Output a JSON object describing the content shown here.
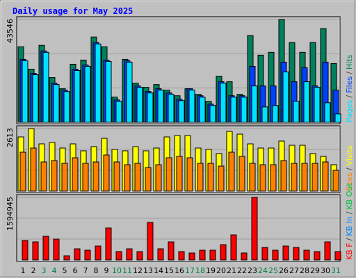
{
  "title": "Daily usage for May 2025",
  "chart_data": [
    {
      "type": "bar",
      "ylim": [
        0,
        43546
      ],
      "yticks": [
        43546
      ],
      "legend_separator": "/",
      "series": [
        {
          "name": "Pages",
          "color": "#00e0ff",
          "values": [
            26066,
            20142,
            29620,
            15995,
            13033,
            21919,
            23696,
            33174,
            25769,
            8886,
            25473,
            14810,
            12440,
            13625,
            11848,
            9182,
            13625,
            10663,
            7109,
            16587,
            10663,
            10663,
            15402,
            6516,
            7109,
            21326,
            8886,
            17180,
            14810,
            8294,
            3554
          ]
        },
        {
          "name": "Files",
          "color": "#0040ff",
          "values": [
            26658,
            20734,
            30212,
            16587,
            13625,
            22511,
            24288,
            33767,
            26362,
            9479,
            26066,
            15402,
            13033,
            14218,
            12440,
            9775,
            14218,
            11256,
            7701,
            17180,
            11256,
            11256,
            23696,
            15402,
            15402,
            25473,
            17180,
            23104,
            15402,
            25473,
            13625
          ]
        },
        {
          "name": "Hits",
          "color": "#00805c",
          "values": [
            31990,
            22511,
            32582,
            18957,
            14218,
            24585,
            26362,
            36138,
            31990,
            10663,
            26658,
            16587,
            14810,
            15995,
            13625,
            11256,
            14218,
            11848,
            8886,
            19549,
            17180,
            11848,
            36729,
            28435,
            29620,
            43546,
            33767,
            29620,
            33767,
            39691,
            24881
          ]
        }
      ]
    },
    {
      "type": "bar",
      "ylim": [
        0,
        2613
      ],
      "yticks": [
        2613
      ],
      "legend_separator": "/",
      "series": [
        {
          "name": "Sites",
          "color": "#ff8000",
          "values": [
            1626,
            1800,
            1219,
            1277,
            1161,
            1393,
            1161,
            1219,
            1510,
            1219,
            1103,
            1161,
            987,
            1103,
            1393,
            1452,
            1393,
            1161,
            1161,
            1045,
            1626,
            1452,
            1161,
            1103,
            1103,
            1277,
            1161,
            1161,
            1161,
            1219,
            871
          ]
        },
        {
          "name": "Visits",
          "color": "#ffff00",
          "values": [
            2264,
            2613,
            1974,
            2032,
            1800,
            1974,
            1684,
            1858,
            2206,
            1742,
            1684,
            1858,
            1684,
            1800,
            2264,
            2322,
            2322,
            1800,
            1742,
            1568,
            2497,
            2380,
            1974,
            1800,
            1800,
            2090,
            1916,
            1916,
            1568,
            1452,
            1103
          ]
        }
      ]
    },
    {
      "type": "bar",
      "ylim": [
        0,
        1594945
      ],
      "yticks": [
        1594945
      ],
      "legend_separator": "/",
      "categories": [
        "1",
        "2",
        "3",
        "4",
        "5",
        "6",
        "7",
        "8",
        "9",
        "10",
        "11",
        "12",
        "13",
        "14",
        "15",
        "16",
        "17",
        "18",
        "19",
        "20",
        "21",
        "22",
        "23",
        "24",
        "25",
        "26",
        "27",
        "28",
        "29",
        "30",
        "31"
      ],
      "category_colors": [
        "#000000",
        "#000000",
        "#008040",
        "#008040",
        "#000000",
        "#000000",
        "#000000",
        "#000000",
        "#000000",
        "#008040",
        "#008040",
        "#000000",
        "#000000",
        "#000000",
        "#000000",
        "#000000",
        "#008040",
        "#008040",
        "#000000",
        "#000000",
        "#000000",
        "#000000",
        "#000000",
        "#008040",
        "#008040",
        "#000000",
        "#000000",
        "#000000",
        "#000000",
        "#000000",
        "#008040"
      ],
      "series": [
        {
          "name": "KB F",
          "color": "#ff0000",
          "values": [
            496216,
            460772,
            602548,
            531660,
            106332,
            283552,
            248108,
            354440,
            815212,
            212664,
            283552,
            212664,
            956988,
            283552,
            460772,
            212664,
            177220,
            248108,
            248108,
            389884,
            637992,
            177220,
            1594945,
            318996,
            248108,
            354440,
            318996,
            248108,
            212664,
            460772,
            212664
          ]
        },
        {
          "name": "KB In",
          "color": "#0080ff",
          "values": [
            0,
            0,
            0,
            0,
            0,
            0,
            0,
            0,
            0,
            0,
            0,
            0,
            0,
            0,
            0,
            0,
            0,
            0,
            0,
            0,
            0,
            0,
            0,
            0,
            0,
            0,
            0,
            0,
            0,
            0,
            0
          ]
        },
        {
          "name": "KB Out",
          "color": "#00c040",
          "values": [
            0,
            0,
            0,
            0,
            0,
            0,
            0,
            0,
            0,
            0,
            0,
            0,
            0,
            0,
            0,
            0,
            0,
            0,
            0,
            0,
            0,
            0,
            0,
            0,
            0,
            0,
            0,
            0,
            0,
            0,
            0
          ]
        }
      ]
    }
  ]
}
